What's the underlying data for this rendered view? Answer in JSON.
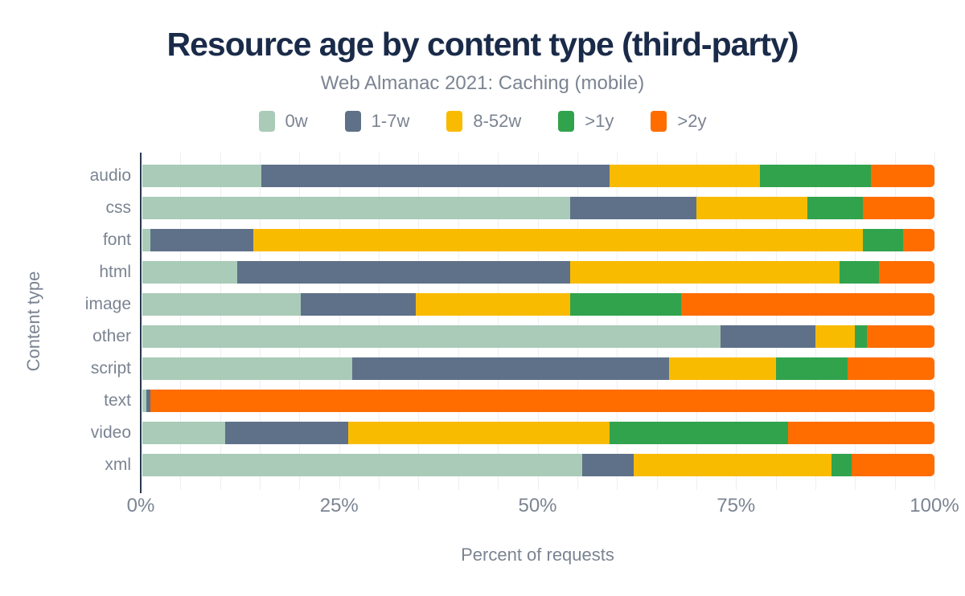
{
  "colors": {
    "title_text": "#1a2b49",
    "muted_text": "#7b8492",
    "axis_line": "#2a3950",
    "gridline": "#edeff2"
  },
  "chart_data": {
    "type": "bar",
    "orientation": "horizontal-stacked",
    "title": "Resource age by content type (third-party)",
    "subtitle": "Web Almanac 2021: Caching (mobile)",
    "xlabel": "Percent of requests",
    "ylabel": "Content type",
    "x_ticks": [
      "0%",
      "25%",
      "50%",
      "75%",
      "100%"
    ],
    "xlim": [
      0,
      100
    ],
    "grid": "vertical gridlines every 5%",
    "legend_position": "top",
    "units": "percent of requests",
    "categories": [
      "audio",
      "css",
      "font",
      "html",
      "image",
      "other",
      "script",
      "text",
      "video",
      "xml"
    ],
    "series": [
      {
        "name": "0w",
        "color": "#a9cbb8",
        "values": [
          15,
          54,
          1,
          12,
          20,
          73,
          26.5,
          0.5,
          10.5,
          55.5
        ]
      },
      {
        "name": "1-7w",
        "color": "#5f7189",
        "values": [
          44,
          16,
          13,
          42,
          14.5,
          12,
          40,
          0.5,
          15.5,
          6.5
        ]
      },
      {
        "name": "8-52w",
        "color": "#f9bb00",
        "values": [
          19,
          14,
          77,
          34,
          19.5,
          5,
          13.5,
          0,
          33,
          25
        ]
      },
      {
        "name": ">1y",
        "color": "#31a34d",
        "values": [
          14,
          7,
          5,
          5,
          14,
          1.5,
          9,
          0,
          22.5,
          2.5
        ]
      },
      {
        "name": ">2y",
        "color": "#ff6d00",
        "values": [
          8,
          9,
          4,
          7,
          32,
          8.5,
          11,
          99,
          18.5,
          10.5
        ]
      }
    ]
  }
}
